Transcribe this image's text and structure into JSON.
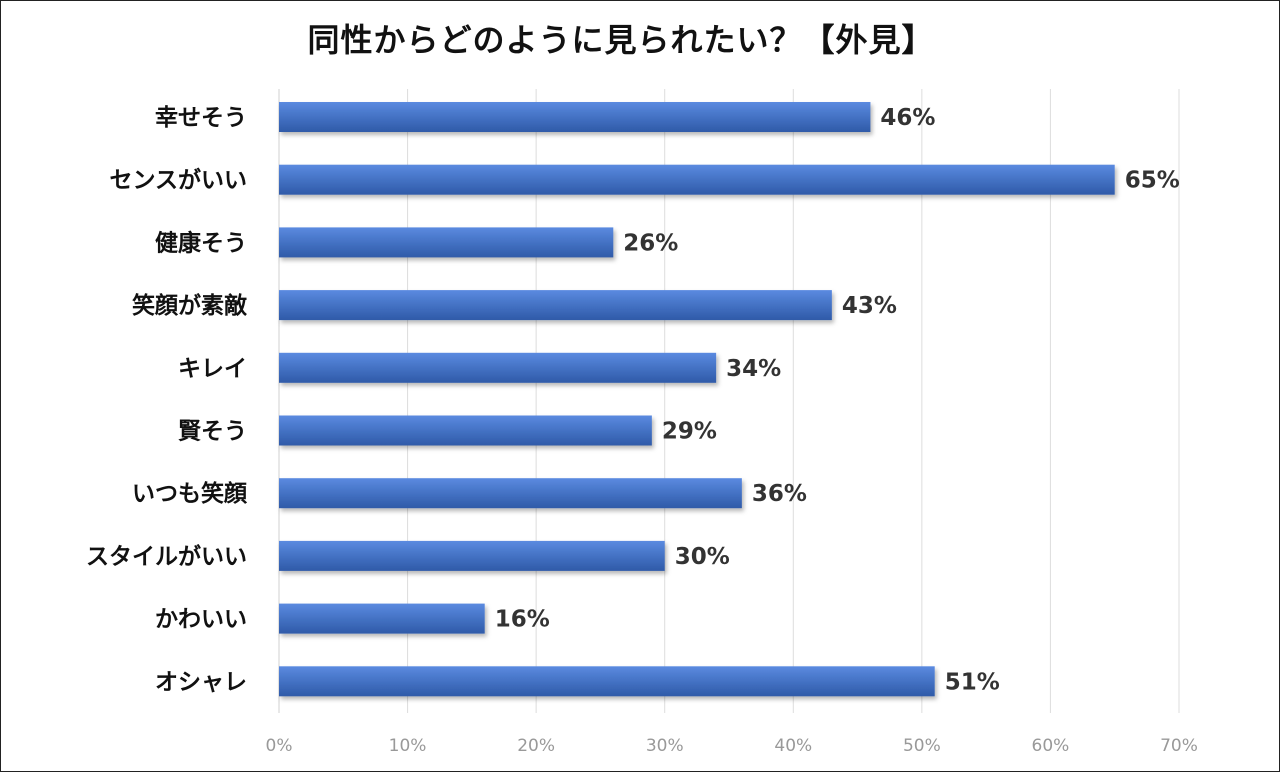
{
  "chart_data": {
    "type": "bar",
    "orientation": "horizontal",
    "title": "同性からどのように見られたい？【外見】",
    "categories": [
      "幸せそう",
      "センスがいい",
      "健康そう",
      "笑顔が素敵",
      "キレイ",
      "賢そう",
      "いつも笑顔",
      "スタイルがいい",
      "かわいい",
      "オシャレ"
    ],
    "values": [
      46,
      65,
      26,
      43,
      34,
      29,
      36,
      30,
      16,
      51
    ],
    "value_labels": [
      "46%",
      "65%",
      "26%",
      "43%",
      "34%",
      "29%",
      "36%",
      "30%",
      "16%",
      "51%"
    ],
    "xlim": [
      0,
      70
    ],
    "xticks": [
      0,
      10,
      20,
      30,
      40,
      50,
      60,
      70
    ],
    "xtick_labels": [
      "0%",
      "10%",
      "20%",
      "30%",
      "40%",
      "50%",
      "60%",
      "70%"
    ],
    "bar_color": "#4472c4",
    "grid": true,
    "legend": "none"
  }
}
